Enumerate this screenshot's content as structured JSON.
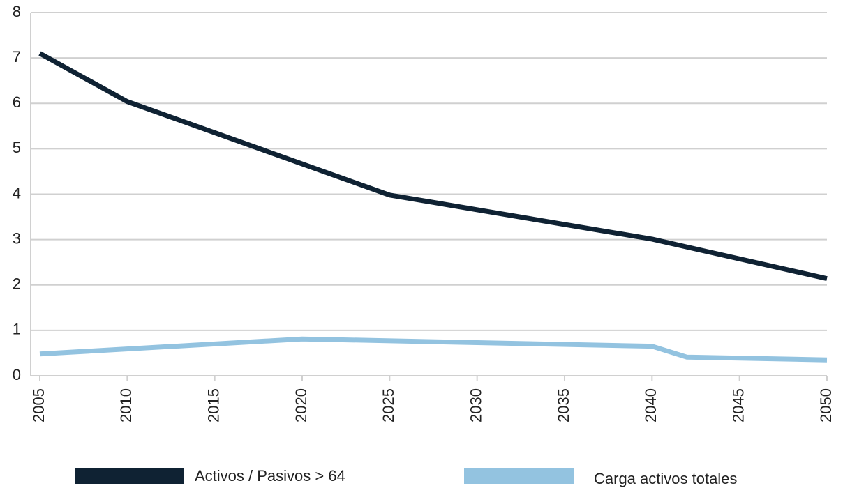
{
  "chart_data": {
    "type": "line",
    "series": [
      {
        "name": "Activos / Pasivos > 64",
        "color": "#0f2233",
        "x": [
          2005,
          2010,
          2025,
          2040,
          2050
        ],
        "values": [
          7.1,
          6.04,
          3.98,
          3.01,
          2.14
        ]
      },
      {
        "name": "Carga activos totales",
        "color": "#93c3e0",
        "x": [
          2005,
          2020,
          2040,
          2042,
          2050
        ],
        "values": [
          0.48,
          0.81,
          0.65,
          0.41,
          0.35
        ]
      }
    ],
    "xlim": [
      2005,
      2050
    ],
    "xticks": [
      2005,
      2010,
      2015,
      2020,
      2025,
      2030,
      2035,
      2040,
      2045,
      2050
    ],
    "ylim": [
      0,
      8
    ],
    "yticks": [
      0,
      1,
      2,
      3,
      4,
      5,
      6,
      7,
      8
    ],
    "grid": true
  }
}
